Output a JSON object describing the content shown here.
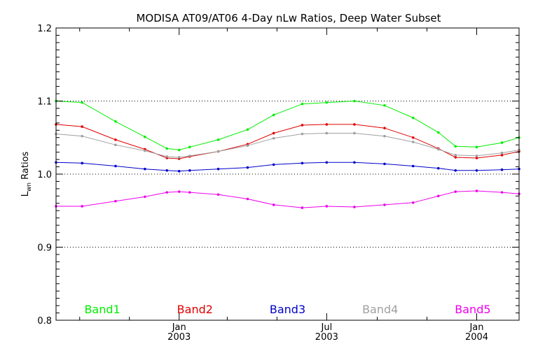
{
  "chart_data": {
    "type": "line",
    "title": "MODISA AT09/AT06 4-Day nLw Ratios, Deep Water Subset",
    "ylabel": {
      "main": "L",
      "sub": "wn",
      "rest": " Ratios"
    },
    "xlabel": "",
    "ylim": [
      0.8,
      1.2
    ],
    "xlim": [
      "2002-08-03",
      "2004-02-22"
    ],
    "yticks": [
      "0.8",
      "0.9",
      "1.0",
      "1.1",
      "1.2"
    ],
    "xticks": [
      {
        "date": "2003-01-01",
        "label1": "Jan",
        "label2": "2003"
      },
      {
        "date": "2003-07-01",
        "label1": "Jul",
        "label2": "2003"
      },
      {
        "date": "2004-01-01",
        "label1": "Jan",
        "label2": "2004"
      }
    ],
    "grid_values": [
      0.9,
      1.0,
      1.1
    ],
    "x": [
      "2002-08-03",
      "2002-09-04",
      "2002-10-15",
      "2002-11-20",
      "2002-12-17",
      "2003-01-01",
      "2003-01-14",
      "2003-02-18",
      "2003-03-26",
      "2003-04-27",
      "2003-06-01",
      "2003-07-01",
      "2003-08-04",
      "2003-09-10",
      "2003-10-15",
      "2003-11-15",
      "2003-12-06",
      "2004-01-01",
      "2004-02-01",
      "2004-02-22"
    ],
    "series": [
      {
        "name": "Band1",
        "color": "#00ee00",
        "values": [
          1.1,
          1.098,
          1.072,
          1.051,
          1.035,
          1.033,
          1.037,
          1.047,
          1.061,
          1.081,
          1.096,
          1.098,
          1.1,
          1.094,
          1.077,
          1.057,
          1.038,
          1.037,
          1.043,
          1.05
        ]
      },
      {
        "name": "Band2",
        "color": "#e00000",
        "values": [
          1.068,
          1.065,
          1.047,
          1.034,
          1.022,
          1.021,
          1.024,
          1.031,
          1.041,
          1.056,
          1.067,
          1.068,
          1.068,
          1.063,
          1.05,
          1.035,
          1.023,
          1.022,
          1.026,
          1.031
        ]
      },
      {
        "name": "Band4",
        "color": "#a0a0a0",
        "values": [
          1.055,
          1.052,
          1.04,
          1.032,
          1.024,
          1.023,
          1.025,
          1.031,
          1.039,
          1.049,
          1.055,
          1.056,
          1.056,
          1.052,
          1.044,
          1.034,
          1.026,
          1.025,
          1.029,
          1.033
        ]
      },
      {
        "name": "Band3",
        "color": "#0000cc",
        "values": [
          1.016,
          1.015,
          1.011,
          1.007,
          1.005,
          1.004,
          1.005,
          1.007,
          1.009,
          1.013,
          1.015,
          1.016,
          1.016,
          1.014,
          1.011,
          1.008,
          1.005,
          1.005,
          1.006,
          1.007
        ]
      },
      {
        "name": "Band5",
        "color": "#ee00ee",
        "values": [
          0.956,
          0.956,
          0.963,
          0.969,
          0.975,
          0.976,
          0.975,
          0.972,
          0.966,
          0.958,
          0.954,
          0.956,
          0.955,
          0.958,
          0.961,
          0.97,
          0.976,
          0.977,
          0.975,
          0.973
        ]
      }
    ],
    "legend": [
      {
        "label": "Band1",
        "color": "#00ee00"
      },
      {
        "label": "Band2",
        "color": "#e00000"
      },
      {
        "label": "Band3",
        "color": "#0000cc"
      },
      {
        "label": "Band4",
        "color": "#a0a0a0"
      },
      {
        "label": "Band5",
        "color": "#ee00ee"
      }
    ],
    "legend_position": "bottom",
    "grid": "dotted horizontal"
  }
}
